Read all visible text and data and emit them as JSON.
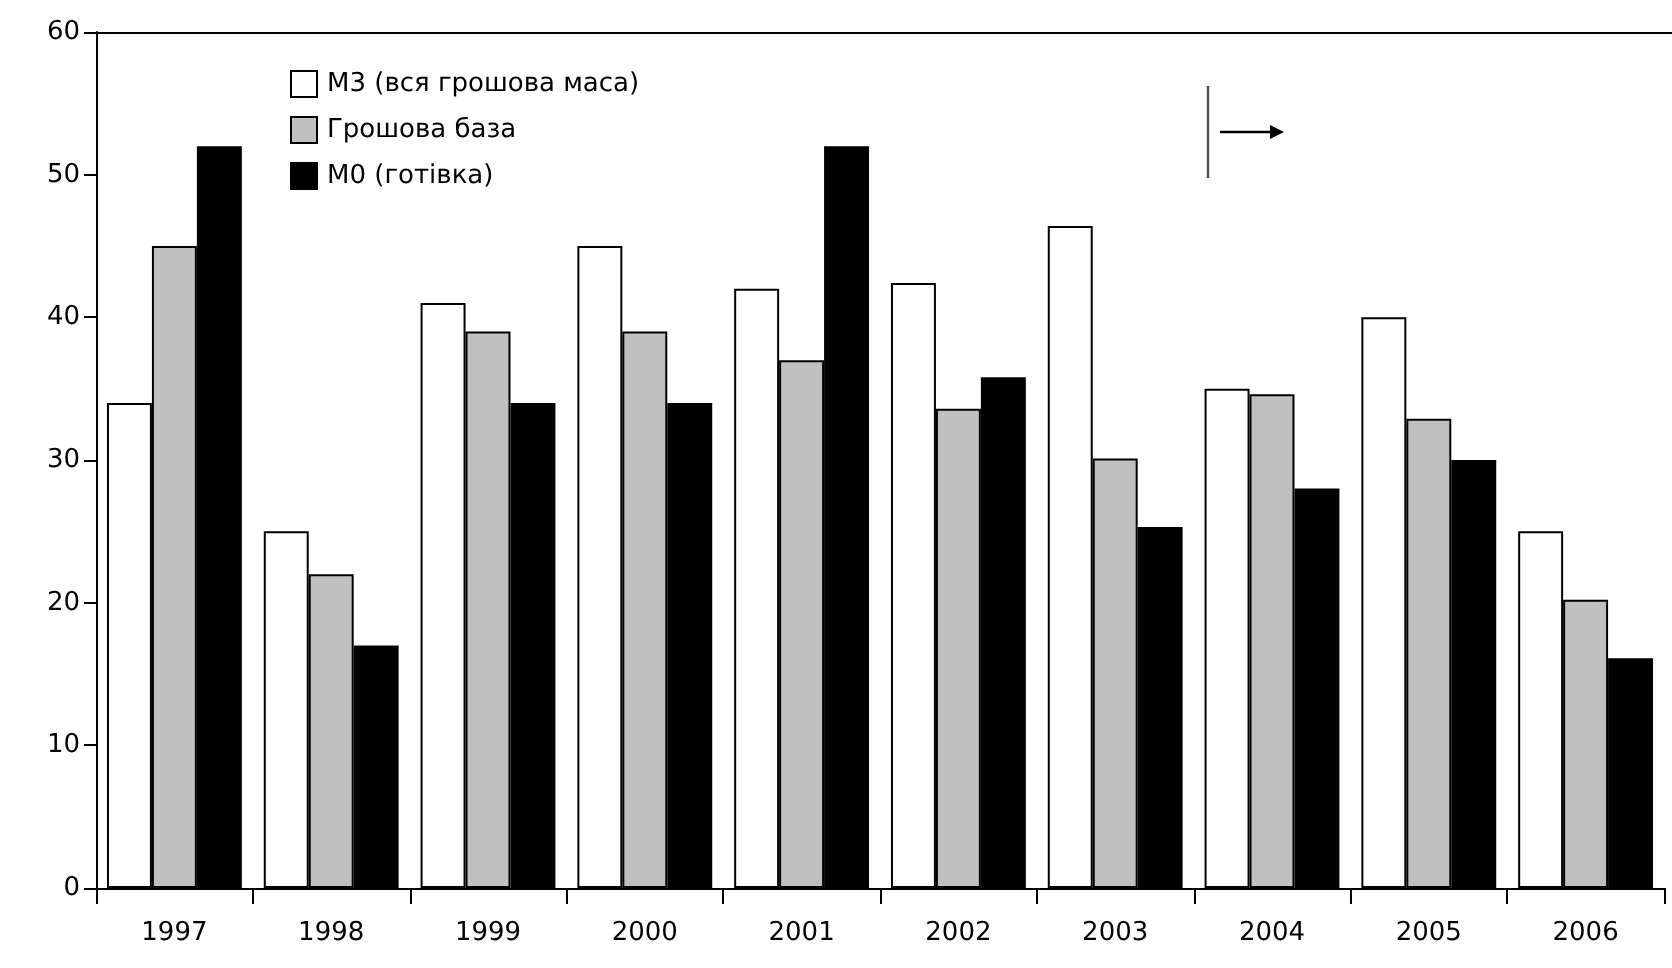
{
  "chart_data": {
    "type": "bar",
    "categories": [
      "1997",
      "1998",
      "1999",
      "2000",
      "2001",
      "2002",
      "2003",
      "2004",
      "2005",
      "2006"
    ],
    "series": [
      {
        "name": "M3 (вся грошова маса)",
        "color": "#ffffff",
        "values": [
          34,
          25,
          41,
          45,
          42,
          42.4,
          46.4,
          35,
          40,
          25
        ]
      },
      {
        "name": "Грошова база",
        "color": "#c0c0c0",
        "values": [
          45,
          22,
          39,
          39,
          37,
          33.6,
          30.1,
          34.6,
          32.9,
          20.2
        ]
      },
      {
        "name": "M0 (готівка)",
        "color": "#000000",
        "values": [
          52,
          17,
          34,
          34,
          52,
          35.8,
          25.3,
          28,
          30,
          16.1
        ]
      }
    ],
    "ylim": [
      0,
      60
    ],
    "yticks": [
      0,
      10,
      20,
      30,
      40,
      50,
      60
    ],
    "grid": false,
    "legend": "top left"
  }
}
